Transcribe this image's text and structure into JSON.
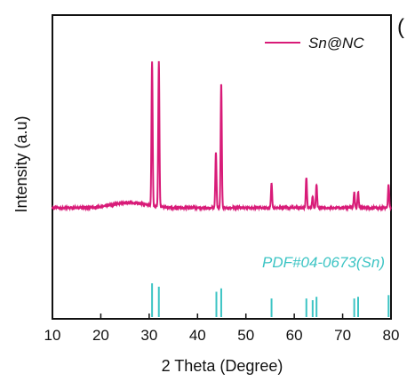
{
  "panel_letter": "(",
  "chart_data": {
    "type": "line",
    "xlabel": "2 Theta (Degree)",
    "ylabel": "Intensity (a.u)",
    "xlim": [
      10,
      80
    ],
    "x_ticks": [
      10,
      20,
      30,
      40,
      50,
      60,
      70,
      80
    ],
    "y_ticks_shown": false,
    "grid": false,
    "legend_position": "top-right",
    "series": [
      {
        "name": "Sn@NC",
        "color": "#d81b78",
        "baseline": 0.0,
        "noise": 0.012,
        "broad_hump": {
          "center": 26,
          "height": 0.035,
          "width": 5
        },
        "peaks": [
          {
            "x": 30.6,
            "height": 1.0
          },
          {
            "x": 32.0,
            "height": 1.0
          },
          {
            "x": 43.8,
            "height": 0.38
          },
          {
            "x": 44.9,
            "height": 0.86
          },
          {
            "x": 55.3,
            "height": 0.17
          },
          {
            "x": 62.5,
            "height": 0.21
          },
          {
            "x": 63.8,
            "height": 0.08
          },
          {
            "x": 64.6,
            "height": 0.16
          },
          {
            "x": 72.4,
            "height": 0.11
          },
          {
            "x": 73.2,
            "height": 0.11
          },
          {
            "x": 79.5,
            "height": 0.16
          }
        ]
      }
    ],
    "reference": {
      "label": "PDF#04-0673(Sn)",
      "color": "#3cc4c4",
      "lines": [
        {
          "x": 30.6,
          "intensity": 1.0
        },
        {
          "x": 32.0,
          "intensity": 0.9
        },
        {
          "x": 43.9,
          "intensity": 0.75
        },
        {
          "x": 44.9,
          "intensity": 0.85
        },
        {
          "x": 55.3,
          "intensity": 0.55
        },
        {
          "x": 62.5,
          "intensity": 0.55
        },
        {
          "x": 63.8,
          "intensity": 0.5
        },
        {
          "x": 64.6,
          "intensity": 0.6
        },
        {
          "x": 72.4,
          "intensity": 0.55
        },
        {
          "x": 73.2,
          "intensity": 0.6
        },
        {
          "x": 79.5,
          "intensity": 0.65
        }
      ]
    }
  }
}
